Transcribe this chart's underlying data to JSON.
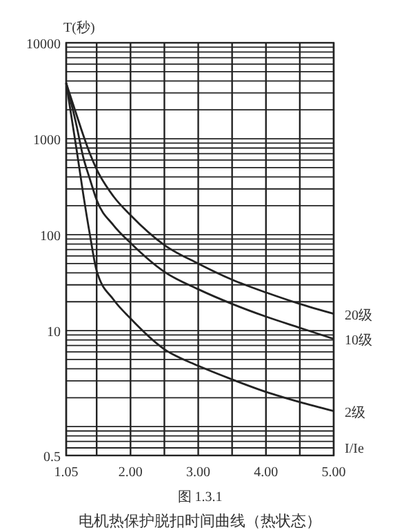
{
  "chart_data": {
    "type": "line",
    "title": "图 1.3.1",
    "subtitle": "电机热保护脱扣时间曲线（热状态）",
    "xlabel": "I/Ie",
    "ylabel": "T(秒)",
    "x": [
      1.05,
      1.2,
      1.3,
      1.4,
      1.5,
      1.75,
      2,
      2.5,
      3,
      3.5,
      4,
      4.5,
      5
    ],
    "series": [
      {
        "name": "20级",
        "color": "#222222",
        "values": [
          3800,
          1800,
          1100,
          700,
          480,
          250,
          160,
          78,
          50,
          34,
          25,
          19,
          15
        ]
      },
      {
        "name": "10级",
        "color": "#222222",
        "values": [
          3800,
          1400,
          650,
          380,
          230,
          125,
          82,
          41,
          27,
          19,
          14,
          10.7,
          8.2
        ]
      },
      {
        "name": "2级",
        "color": "#222222",
        "values": [
          3800,
          800,
          270,
          100,
          42,
          21,
          13.4,
          6.4,
          4.3,
          3.1,
          2.3,
          1.8,
          1.45
        ]
      }
    ],
    "xlim": [
      1.05,
      5
    ],
    "xticks": [
      {
        "value": 1.05,
        "label": "1.05"
      },
      {
        "value": 1.5,
        "label": null
      },
      {
        "value": 2,
        "label": "2.00"
      },
      {
        "value": 2.5,
        "label": null
      },
      {
        "value": 3,
        "label": "3.00"
      },
      {
        "value": 3.5,
        "label": null
      },
      {
        "value": 4,
        "label": "4.00"
      },
      {
        "value": 4.5,
        "label": null
      },
      {
        "value": 5,
        "label": "5.00"
      }
    ],
    "ylim": [
      0.5,
      10000
    ],
    "yticks": [
      0.5,
      10,
      100,
      1000,
      10000
    ],
    "log": true,
    "grid": true,
    "marker": "none",
    "line_style": "solid"
  }
}
